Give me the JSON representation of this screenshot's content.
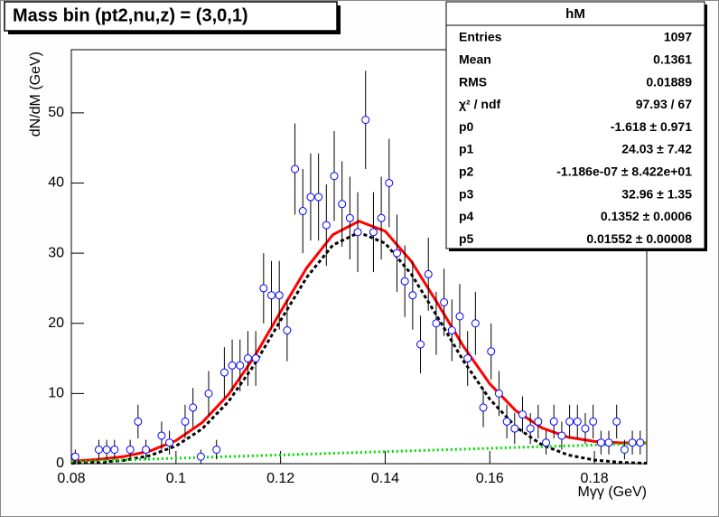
{
  "chart_data": {
    "type": "errorbar",
    "title": "Mass bin (pt2,nu,z) = (3,0,1)",
    "y_label": "dN/dM (GeV)",
    "x_label": "Mγγ (GeV)",
    "xlim": [
      0.08,
      0.19
    ],
    "ylim": [
      0,
      59
    ],
    "xticks": [
      0.08,
      0.1,
      0.12,
      0.14,
      0.16,
      0.18
    ],
    "yticks": [
      0,
      10,
      20,
      30,
      40,
      50
    ],
    "color": "#0000ff",
    "x": [
      0.08075,
      0.08525,
      0.08675,
      0.08825,
      0.09125,
      0.09275,
      0.09425,
      0.09725,
      0.09875,
      0.10175,
      0.10325,
      0.10475,
      0.10625,
      0.10775,
      0.10925,
      0.11075,
      0.11225,
      0.11375,
      0.11525,
      0.11675,
      0.11825,
      0.11975,
      0.12125,
      0.12275,
      0.12425,
      0.12575,
      0.12725,
      0.12875,
      0.13025,
      0.13175,
      0.13325,
      0.13475,
      0.13625,
      0.13775,
      0.13925,
      0.14075,
      0.14225,
      0.14375,
      0.14525,
      0.14675,
      0.14825,
      0.14975,
      0.15125,
      0.15275,
      0.15425,
      0.15575,
      0.15725,
      0.15875,
      0.16025,
      0.16175,
      0.16325,
      0.16475,
      0.16625,
      0.16775,
      0.16925,
      0.17075,
      0.17225,
      0.17375,
      0.17525,
      0.17675,
      0.17825,
      0.17975,
      0.18125,
      0.18275,
      0.18425,
      0.18575,
      0.18725,
      0.18875
    ],
    "values": [
      1,
      2,
      2,
      2,
      2,
      6,
      2,
      4,
      3,
      6,
      8,
      1,
      10,
      2,
      13,
      14,
      14,
      15,
      15,
      25,
      24,
      24,
      19,
      42,
      36,
      38,
      38,
      34,
      41,
      37,
      35,
      33,
      49,
      33,
      35,
      40,
      30,
      26,
      24,
      17,
      27,
      20,
      23,
      19,
      21,
      15,
      20,
      8,
      16,
      10,
      6,
      5,
      7,
      5,
      6,
      3,
      6,
      4,
      6,
      6,
      5,
      6,
      3,
      3,
      6,
      2,
      3,
      3
    ],
    "errors": [
      1,
      1.4,
      1.4,
      1.4,
      1.4,
      2.4,
      1.4,
      2,
      1.7,
      2.4,
      2.8,
      1,
      3.2,
      1.4,
      3.6,
      3.7,
      3.7,
      3.9,
      3.9,
      5,
      4.9,
      4.9,
      4.4,
      6.5,
      6,
      6.2,
      6.2,
      5.8,
      6.4,
      6.1,
      5.9,
      5.7,
      7,
      5.7,
      5.9,
      6.3,
      5.5,
      5.1,
      4.9,
      4.1,
      5.2,
      4.5,
      4.8,
      4.4,
      4.6,
      3.9,
      4.5,
      2.8,
      4,
      3.2,
      2.4,
      2.2,
      2.6,
      2.2,
      2.4,
      1.7,
      2.4,
      2,
      2.4,
      2.4,
      2.2,
      2.4,
      1.7,
      1.7,
      2.4,
      1.4,
      1.7,
      1.7
    ],
    "curve_x": [
      0.08,
      0.085,
      0.09,
      0.095,
      0.1,
      0.105,
      0.11,
      0.115,
      0.12,
      0.125,
      0.13,
      0.135,
      0.14,
      0.145,
      0.15,
      0.155,
      0.16,
      0.165,
      0.17,
      0.175,
      0.18,
      0.185,
      0.19
    ],
    "curves": [
      {
        "color": "#ff0000",
        "style": "solid",
        "values": [
          0.36,
          0.6,
          1.01,
          1.8,
          3.29,
          5.85,
          9.83,
          15.26,
          21.66,
          27.92,
          32.64,
          34.56,
          33.14,
          28.84,
          22.86,
          16.67,
          11.38,
          7.53,
          5.09,
          3.77,
          3.17,
          2.97,
          2.96
        ]
      },
      {
        "color": "#000000",
        "style": "dashed",
        "values": [
          0.06,
          0.18,
          0.47,
          1.15,
          2.52,
          4.96,
          8.82,
          14.13,
          20.42,
          26.56,
          31.16,
          32.96,
          31.42,
          27.01,
          20.91,
          14.6,
          9.19,
          5.22,
          2.67,
          1.23,
          0.51,
          0.19,
          0.06
        ]
      },
      {
        "color": "#00dd00",
        "style": "dotted",
        "values": [
          0.3,
          0.42,
          0.54,
          0.65,
          0.77,
          0.89,
          1.01,
          1.13,
          1.24,
          1.36,
          1.48,
          1.6,
          1.72,
          1.83,
          1.95,
          2.07,
          2.19,
          2.31,
          2.42,
          2.54,
          2.66,
          2.78,
          2.9
        ]
      }
    ]
  },
  "stats_box": {
    "title": "hM",
    "rows": [
      [
        "Entries",
        "1097"
      ],
      [
        "Mean",
        "0.1361"
      ],
      [
        "RMS",
        "0.01889"
      ],
      [
        "χ² / ndf",
        "97.93 / 67"
      ],
      [
        "p0",
        "-1.618 ± 0.971"
      ],
      [
        "p1",
        "24.03 ± 7.42"
      ],
      [
        "p2",
        "-1.186e-07 ± 8.422e+01"
      ],
      [
        "p3",
        "32.96 ± 1.35"
      ],
      [
        "p4",
        "0.1352 ± 0.0006"
      ],
      [
        "p5",
        "0.01552 ± 0.00008"
      ]
    ]
  }
}
